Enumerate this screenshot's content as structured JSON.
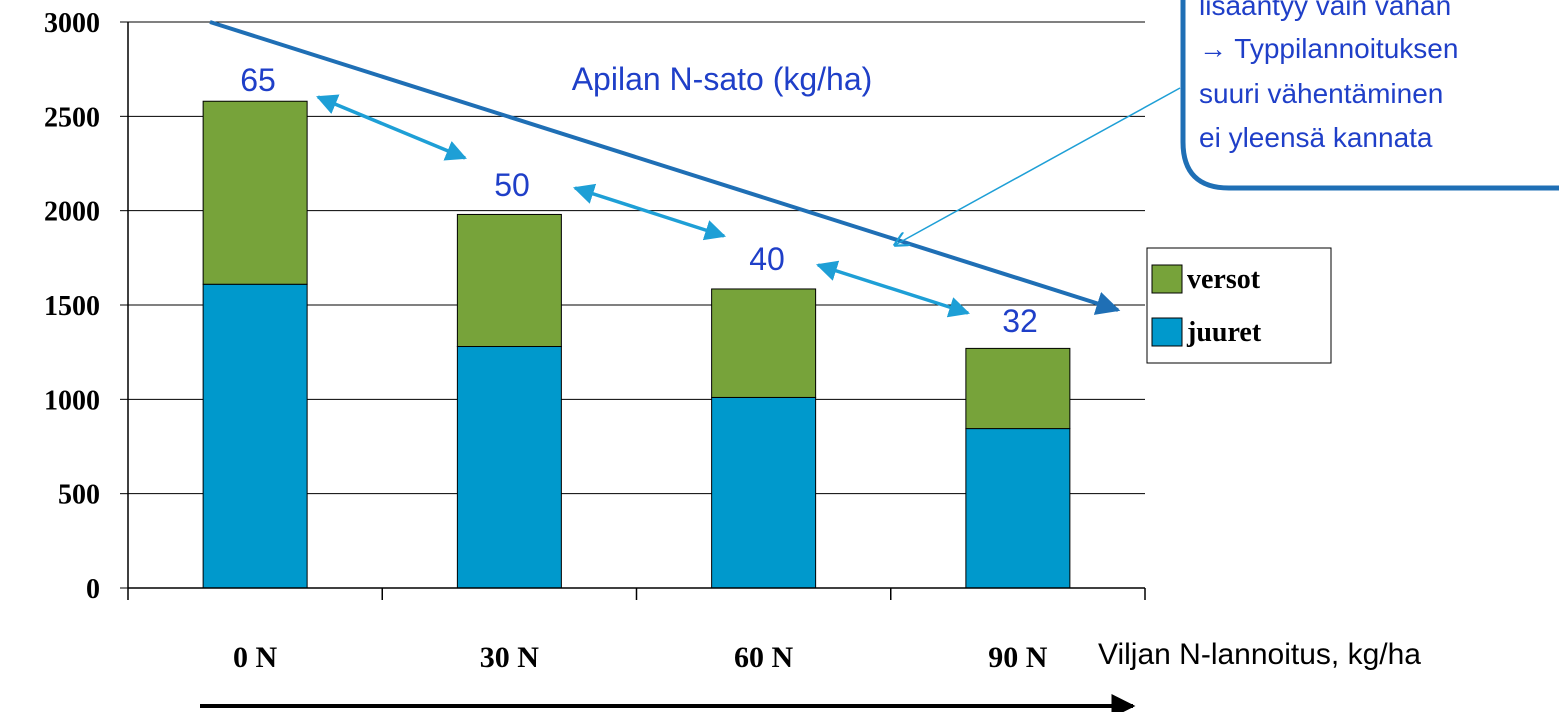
{
  "chart_data": {
    "type": "bar",
    "stacked": true,
    "categories": [
      "0 N",
      "30 N",
      "60 N",
      "90 N"
    ],
    "series": [
      {
        "name": "juuret",
        "values": [
          1610,
          1280,
          1010,
          845
        ],
        "color": "#0099cc"
      },
      {
        "name": "versot",
        "values": [
          970,
          700,
          575,
          425
        ],
        "color": "#77a33a"
      }
    ],
    "data_labels": [
      "65",
      "50",
      "40",
      "32"
    ],
    "annotation": "Apilan N-sato (kg/ha)",
    "xlabel": "Viljan N-lannoitus, kg/ha",
    "ylabel": "",
    "ylim": [
      0,
      3000
    ],
    "yticks": [
      "0",
      "500",
      "1000",
      "1500",
      "2000",
      "2500",
      "3000"
    ],
    "grid": true,
    "legend_position": "right",
    "callout_lines": [
      "lisääntyy vain vähän",
      "→ Typpilannoituksen",
      "suuri vähentäminen",
      "ei yleensä kannata"
    ],
    "colors": {
      "trend_arrow": "#1f6fb5",
      "pair_arrows": "#1e9fd6",
      "callout_border": "#1f6fb5",
      "label_text": "#1f3fc8"
    }
  }
}
